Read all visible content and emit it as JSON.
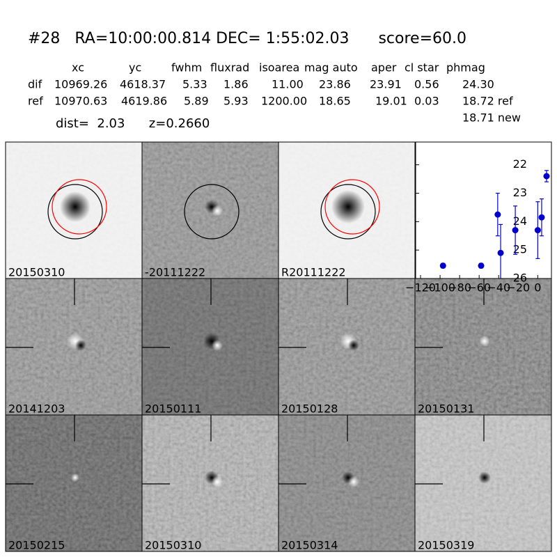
{
  "header": {
    "title": "#28   RA=10:00:00.814 DEC= 1:55:02.03      score=60.0",
    "columns": [
      "xc",
      "yc",
      "fwhm",
      "fluxrad",
      "isoarea",
      "mag auto",
      "aper",
      "cl star",
      "phmag"
    ],
    "rows": [
      {
        "label": "dif",
        "cells": [
          "10969.26",
          "4618.37",
          "5.33",
          "1.86",
          "11.00",
          "23.86",
          "23.91",
          "0.56",
          "24.30"
        ]
      },
      {
        "label": "ref",
        "cells": [
          "10970.63",
          "4619.86",
          "5.89",
          "5.93",
          "1200.00",
          "18.65",
          "19.01",
          "0.03",
          "18.72 ref"
        ]
      }
    ],
    "extra": "18.71 new",
    "dist": "dist=  2.03      z=0.2660"
  },
  "panels": [
    {
      "label": "20150310"
    },
    {
      "label": "-20111222"
    },
    {
      "label": "R20111222"
    },
    {
      "label": "20141203"
    },
    {
      "label": "20150111"
    },
    {
      "label": "20150128"
    },
    {
      "label": "20150131"
    },
    {
      "label": "20150215"
    },
    {
      "label": "20150310",
      "color": "#ff0000"
    },
    {
      "label": "20150314"
    },
    {
      "label": "20150319"
    }
  ],
  "chart_data": {
    "type": "scatter",
    "x": [
      -97,
      -58,
      -41,
      -38,
      -23,
      0,
      4,
      9
    ],
    "values": [
      25.55,
      25.55,
      23.75,
      25.1,
      24.3,
      24.3,
      23.85,
      22.4
    ],
    "errors": [
      0.08,
      0.08,
      0.75,
      1.0,
      0.85,
      1.0,
      0.65,
      0.2
    ],
    "color": "#0000cc",
    "xlim": [
      -125,
      14
    ],
    "ylim": [
      21.2,
      26
    ],
    "y_inverted": true,
    "xticks": [
      {
        "value": -120,
        "label": "−120"
      },
      {
        "value": -100,
        "label": "−100"
      },
      {
        "value": -80,
        "label": "−80"
      },
      {
        "value": -60,
        "label": "−60"
      },
      {
        "value": -40,
        "label": "−40"
      },
      {
        "value": -20,
        "label": "−20"
      },
      0
    ],
    "yticks": [
      22,
      23,
      24,
      25,
      26
    ]
  }
}
